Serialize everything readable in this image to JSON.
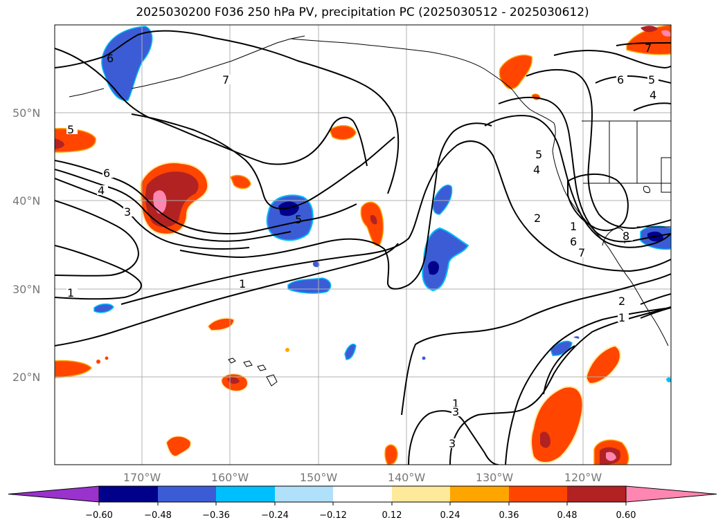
{
  "title": "2025030200 F036 250 hPa PV, precipitation PC (2025030512 - 2025030612)",
  "map": {
    "lat_labels": [
      "50°N",
      "40°N",
      "30°N",
      "20°N"
    ],
    "lon_labels": [
      "170°W",
      "160°W",
      "150°W",
      "140°W",
      "130°W",
      "120°W"
    ],
    "grid": true
  },
  "contour_labels": [
    "5",
    "6",
    "4",
    "3",
    "1",
    "7",
    "5",
    "1",
    "7",
    "6",
    "5",
    "4",
    "5",
    "4",
    "2",
    "1",
    "6",
    "7",
    "8",
    "2",
    "1",
    "1",
    "3",
    "3",
    "6"
  ],
  "colorbar": {
    "ticks": [
      "−0.60",
      "−0.48",
      "−0.36",
      "−0.24",
      "−0.12",
      "0.12",
      "0.24",
      "0.36",
      "0.48",
      "0.60"
    ],
    "colors": {
      "under": "#9a32cd",
      "neg_060": "#00008b",
      "neg_048": "#3c5cd6",
      "neg_036": "#00bfff",
      "neg_024": "#b0e0fa",
      "neutral": "#ffffff",
      "pos_012": "#ffe99a",
      "pos_024": "#ffa500",
      "pos_036": "#ff4500",
      "pos_048": "#b22222",
      "over": "#ff86b0"
    }
  }
}
